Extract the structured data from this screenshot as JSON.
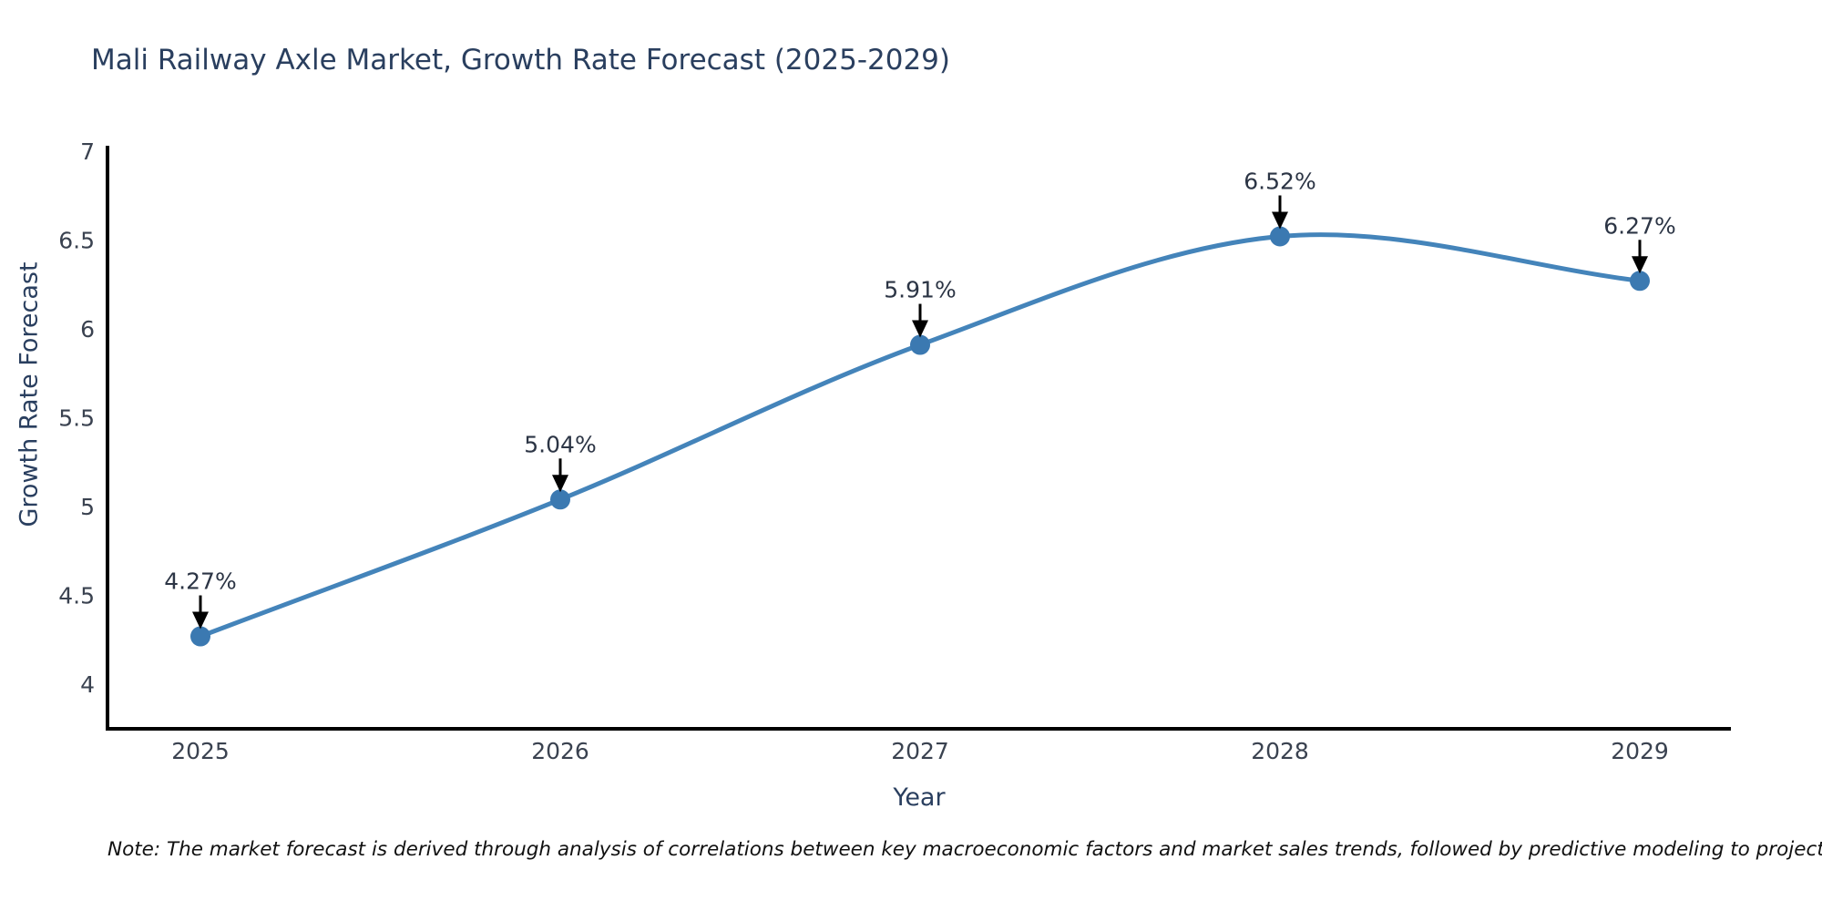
{
  "title": "Mali Railway Axle Market, Growth Rate Forecast (2025-2029)",
  "note": "Note: The market forecast is derived through analysis of correlations between key macroeconomic factors and market sales trends, followed by predictive modeling to project future sales",
  "chart_data": {
    "type": "line",
    "title": "Mali Railway Axle Market, Growth Rate Forecast (2025-2029)",
    "xlabel": "Year",
    "ylabel": "Growth Rate Forecast",
    "x": [
      2025,
      2026,
      2027,
      2028,
      2029
    ],
    "values": [
      4.27,
      5.04,
      5.91,
      6.52,
      6.27
    ],
    "point_labels": [
      "4.27%",
      "5.04%",
      "5.91%",
      "6.52%",
      "6.27%"
    ],
    "xtick_labels": [
      "2025",
      "2026",
      "2027",
      "2028",
      "2029"
    ],
    "ytick_values": [
      4,
      4.5,
      5,
      5.5,
      6,
      6.5,
      7
    ],
    "ytick_labels": [
      "4",
      "4.5",
      "5",
      "5.5",
      "6",
      "6.5",
      "7"
    ],
    "ylim": [
      3.75,
      7.03
    ],
    "grid": false,
    "legend": "none",
    "smooth": true,
    "annotations_arrow": "down",
    "colors": {
      "line": "#4484ba",
      "marker": "#3b79b1",
      "axis": "#000000",
      "tick_text": "#3a4250",
      "annotation_text": "#2c3545",
      "arrow": "#000000",
      "title_text": "#2a3f5f",
      "background": "#ffffff"
    }
  }
}
